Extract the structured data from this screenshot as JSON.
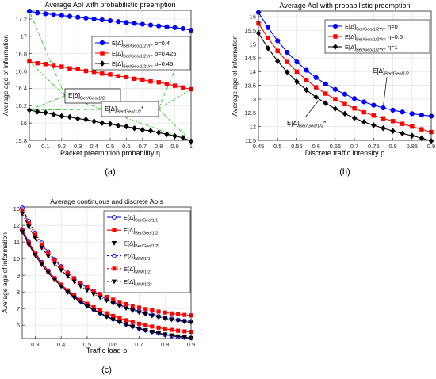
{
  "chart_data": [
    {
      "type": "line",
      "panel_label": "(a)",
      "title": "Average AoI with probabilistic preemption",
      "xlabel": "Packet preemption probability η",
      "ylabel": "Average age of information",
      "xlim": [
        0,
        1
      ],
      "ylim": [
        15.8,
        17.3
      ],
      "xticks": [
        0,
        0.1,
        0.2,
        0.3,
        0.4,
        0.5,
        0.6,
        0.7,
        0.8,
        0.9,
        1
      ],
      "yticks": [
        15.8,
        16,
        16.2,
        16.4,
        16.6,
        16.8,
        17,
        17.2
      ],
      "xtick_labels": [
        "0",
        "0.1",
        "0.2",
        "0.3",
        "0.4",
        "0.5",
        "0.6",
        "0.7",
        "0.8",
        "0.9",
        "1"
      ],
      "ytick_labels": [
        "15.8",
        "16",
        "16.2",
        "16.4",
        "16.6",
        "16.8",
        "17",
        "17.2"
      ],
      "grid": true,
      "legend_position": "top-right",
      "x": [
        0,
        0.05,
        0.1,
        0.15,
        0.2,
        0.25,
        0.3,
        0.35,
        0.4,
        0.45,
        0.5,
        0.55,
        0.6,
        0.65,
        0.7,
        0.75,
        0.8,
        0.85,
        0.9,
        0.95,
        1
      ],
      "series": [
        {
          "name": "E[Δ]Ber/Geo/1/2*/η, ρ=0.4",
          "legend_main": "E[Δ]",
          "legend_sub": "Ber/Geo/1/2*/η",
          "legend_tail": ", ρ=0.4",
          "color": "#0000ff",
          "marker": "circle-filled",
          "values": [
            17.29,
            17.27,
            17.26,
            17.25,
            17.24,
            17.23,
            17.22,
            17.21,
            17.2,
            17.19,
            17.18,
            17.17,
            17.16,
            17.15,
            17.14,
            17.13,
            17.12,
            17.11,
            17.1,
            17.09,
            17.07
          ]
        },
        {
          "name": "E[Δ]Ber/Geo/1/2*/η, ρ=0.425",
          "legend_main": "E[Δ]",
          "legend_sub": "Ber/Geo/1/2*/η",
          "legend_tail": ", ρ=0.425",
          "color": "#ff0000",
          "marker": "square-filled",
          "values": [
            16.71,
            16.69,
            16.68,
            16.66,
            16.65,
            16.63,
            16.62,
            16.6,
            16.59,
            16.57,
            16.56,
            16.54,
            16.53,
            16.51,
            16.5,
            16.48,
            16.47,
            16.45,
            16.43,
            16.41,
            16.39
          ]
        },
        {
          "name": "E[Δ]Ber/Geo/1/2*/η, ρ=0.45",
          "legend_main": "E[Δ]",
          "legend_sub": "Ber/Geo/1/2*/η",
          "legend_tail": ", ρ=0.45",
          "color": "#000000",
          "marker": "diamond-filled",
          "values": [
            16.15,
            16.13,
            16.12,
            16.1,
            16.08,
            16.07,
            16.05,
            16.04,
            16.02,
            16.0,
            15.99,
            15.97,
            15.96,
            15.94,
            15.92,
            15.91,
            15.89,
            15.87,
            15.85,
            15.83,
            15.79
          ]
        }
      ],
      "annotations": [
        {
          "main": "E[Δ]",
          "sub": "Ber/Geo/1/2",
          "star": ""
        },
        {
          "main": "E[Δ]",
          "sub": "Ber/Geo/1/2",
          "star": "*"
        }
      ]
    },
    {
      "type": "line",
      "panel_label": "(b)",
      "title": "Average AoI with probabilistic preemption",
      "xlabel": "Discrete traffic intensity ρ",
      "ylabel": "Average age of information",
      "xlim": [
        0.45,
        0.9
      ],
      "ylim": [
        11.5,
        16.2
      ],
      "xticks": [
        0.45,
        0.5,
        0.55,
        0.6,
        0.65,
        0.7,
        0.75,
        0.8,
        0.85,
        0.9
      ],
      "yticks": [
        11.5,
        12,
        12.5,
        13,
        13.5,
        14,
        14.5,
        15,
        15.5,
        16
      ],
      "xtick_labels": [
        "0.45",
        "0.5",
        "0.55",
        "0.6",
        "0.65",
        "0.7",
        "0.75",
        "0.8",
        "0.85",
        "0.9"
      ],
      "ytick_labels": [
        "11.5",
        "12",
        "12.5",
        "13",
        "13.5",
        "14",
        "14.5",
        "15",
        "15.5",
        "16"
      ],
      "grid": true,
      "legend_position": "top-right",
      "x": [
        0.45,
        0.475,
        0.5,
        0.525,
        0.55,
        0.575,
        0.6,
        0.625,
        0.65,
        0.675,
        0.7,
        0.725,
        0.75,
        0.775,
        0.8,
        0.825,
        0.85,
        0.875,
        0.9
      ],
      "series": [
        {
          "name": "E[Δ]Ber/Geo/1/2*/η, η=0",
          "legend_main": "E[Δ]",
          "legend_sub": "Ber/Geo/1/2*/η",
          "legend_tail": ", η=0",
          "color": "#0000ff",
          "marker": "circle-filled",
          "values": [
            16.15,
            15.6,
            15.12,
            14.7,
            14.35,
            14.05,
            13.78,
            13.55,
            13.35,
            13.18,
            13.02,
            12.9,
            12.78,
            12.68,
            12.6,
            12.53,
            12.47,
            12.42,
            12.38
          ]
        },
        {
          "name": "E[Δ]Ber/Geo/1/2*/η, η=0.5",
          "legend_main": "E[Δ]",
          "legend_sub": "Ber/Geo/1/2*/η",
          "legend_tail": ", η=0.5",
          "color": "#ff0000",
          "marker": "square-filled",
          "values": [
            15.75,
            15.22,
            14.75,
            14.35,
            14.0,
            13.7,
            13.43,
            13.2,
            13.0,
            12.82,
            12.66,
            12.52,
            12.4,
            12.3,
            12.2,
            12.1,
            12.0,
            11.9,
            11.8
          ]
        },
        {
          "name": "E[Δ]Ber/Geo/1/2*/η, η=1",
          "legend_main": "E[Δ]",
          "legend_sub": "Ber/Geo/1/2*/η",
          "legend_tail": ", η=1",
          "color": "#000000",
          "marker": "diamond-filled",
          "values": [
            15.4,
            14.85,
            14.38,
            13.98,
            13.63,
            13.33,
            13.07,
            12.85,
            12.65,
            12.47,
            12.31,
            12.17,
            12.05,
            11.94,
            11.84,
            11.75,
            11.67,
            11.58,
            11.48
          ]
        }
      ],
      "annotations": [
        {
          "main": "E[Δ]",
          "sub": "Ber/Geo/1/2",
          "star": ""
        },
        {
          "main": "E[Δ]",
          "sub": "Ber/Geo/1/2",
          "star": "*"
        }
      ]
    },
    {
      "type": "line",
      "panel_label": "(c)",
      "title": "Average continuous and discrete AoIs",
      "xlabel": "Traffic load ρ",
      "ylabel": "Average age of information",
      "xlim": [
        0.25,
        0.9
      ],
      "ylim": [
        5.2,
        13.1
      ],
      "xticks": [
        0.3,
        0.4,
        0.5,
        0.6,
        0.7,
        0.8,
        0.9
      ],
      "yticks": [
        6,
        7,
        8,
        9,
        10,
        11,
        12,
        13
      ],
      "xtick_labels": [
        "0.3",
        "0.4",
        "0.5",
        "0.6",
        "0.7",
        "0.8",
        "0.9"
      ],
      "ytick_labels": [
        "6",
        "7",
        "8",
        "9",
        "10",
        "11",
        "12",
        "13"
      ],
      "grid": true,
      "legend_position": "top-right",
      "x": [
        0.25,
        0.275,
        0.3,
        0.325,
        0.35,
        0.375,
        0.4,
        0.425,
        0.45,
        0.475,
        0.5,
        0.525,
        0.55,
        0.575,
        0.6,
        0.625,
        0.65,
        0.675,
        0.7,
        0.725,
        0.75,
        0.775,
        0.8,
        0.825,
        0.85,
        0.875,
        0.9
      ],
      "series": [
        {
          "name": "E[Δ]Ber/Geo/1/1",
          "legend_main": "E[Δ]",
          "legend_sub": "Ber/Geo/1/1",
          "legend_tail": "",
          "color": "#0000ff",
          "marker": "circle-open",
          "dashed": false,
          "values": [
            11.75,
            11.0,
            10.35,
            9.78,
            9.27,
            8.82,
            8.42,
            8.06,
            7.74,
            7.45,
            7.19,
            6.95,
            6.74,
            6.54,
            6.37,
            6.21,
            6.06,
            5.93,
            5.81,
            5.7,
            5.6,
            5.51,
            5.43,
            5.36,
            5.3,
            5.26,
            5.24
          ]
        },
        {
          "name": "E[Δ]Ber/Geo/1/2",
          "legend_main": "E[Δ]",
          "legend_sub": "Ber/Geo/1/2",
          "legend_tail": "",
          "color": "#ff0000",
          "marker": "square-filled",
          "dashed": false,
          "values": [
            11.7,
            10.95,
            10.3,
            9.74,
            9.25,
            8.82,
            8.44,
            8.1,
            7.8,
            7.53,
            7.29,
            7.08,
            6.89,
            6.72,
            6.56,
            6.42,
            6.3,
            6.19,
            6.09,
            6.0,
            5.92,
            5.85,
            5.78,
            5.72,
            5.67,
            5.63,
            5.6
          ]
        },
        {
          "name": "E[Δ]Ber/Geo/1/2*",
          "legend_main": "E[Δ]",
          "legend_sub": "Ber/Geo/1/2*",
          "legend_tail": "",
          "color": "#000000",
          "marker": "triangle-down",
          "dashed": false,
          "values": [
            11.6,
            10.85,
            10.2,
            9.64,
            9.15,
            8.72,
            8.33,
            7.98,
            7.67,
            7.39,
            7.14,
            6.91,
            6.7,
            6.51,
            6.34,
            6.19,
            6.05,
            5.92,
            5.8,
            5.69,
            5.6,
            5.52,
            5.45,
            5.39,
            5.33,
            5.28,
            5.23
          ]
        },
        {
          "name": "E[Δ]M/M/1/1",
          "legend_main": "E[Δ]",
          "legend_sub": "M/M/1/1",
          "legend_tail": "",
          "color": "#0000ff",
          "marker": "circle-open",
          "dashed": true,
          "values": [
            13.05,
            12.25,
            11.55,
            10.95,
            10.42,
            9.95,
            9.53,
            9.15,
            8.81,
            8.51,
            8.24,
            7.99,
            7.77,
            7.57,
            7.39,
            7.23,
            7.08,
            6.95,
            6.83,
            6.72,
            6.62,
            6.53,
            6.45,
            6.38,
            6.32,
            6.27,
            6.23
          ]
        },
        {
          "name": "E[Δ]M/M/1/2",
          "legend_main": "E[Δ]",
          "legend_sub": "M/M/1/2",
          "legend_tail": "",
          "color": "#ff0000",
          "marker": "square-filled",
          "dashed": true,
          "values": [
            12.9,
            12.12,
            11.44,
            10.85,
            10.34,
            9.89,
            9.49,
            9.13,
            8.82,
            8.54,
            8.29,
            8.07,
            7.88,
            7.7,
            7.54,
            7.4,
            7.27,
            7.16,
            7.06,
            6.97,
            6.89,
            6.82,
            6.76,
            6.71,
            6.66,
            6.62,
            6.59
          ]
        },
        {
          "name": "E[Δ]M/M/1/2*",
          "legend_main": "E[Δ]",
          "legend_sub": "M/M/1/2*",
          "legend_tail": "",
          "color": "#000000",
          "marker": "triangle-down",
          "dashed": true,
          "values": [
            12.7,
            11.92,
            11.24,
            10.66,
            10.15,
            9.7,
            9.3,
            8.95,
            8.63,
            8.35,
            8.1,
            7.87,
            7.67,
            7.48,
            7.31,
            7.16,
            7.02,
            6.89,
            6.78,
            6.67,
            6.57,
            6.49,
            6.41,
            6.34,
            6.27,
            6.22,
            6.17
          ]
        }
      ]
    }
  ]
}
